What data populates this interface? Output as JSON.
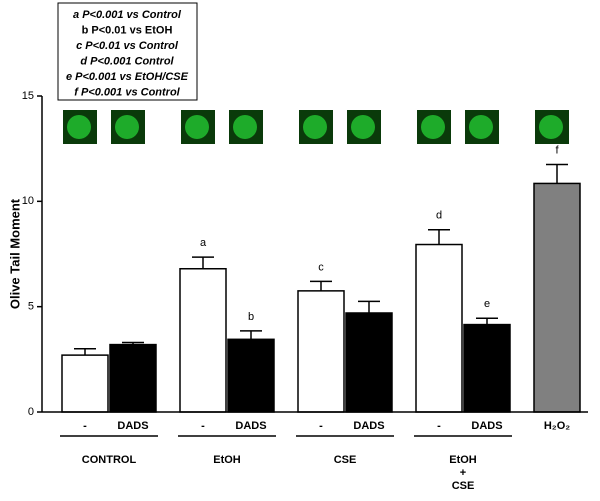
{
  "chart_data": {
    "type": "bar",
    "ylabel": "Olive Tail Moment",
    "categories": [
      "-",
      "DADS",
      "-",
      "DADS",
      "-",
      "DADS",
      "-",
      "DADS",
      "H₂O₂"
    ],
    "values": [
      2.7,
      3.2,
      6.8,
      3.45,
      5.75,
      4.7,
      7.95,
      4.15,
      10.85
    ],
    "errors": [
      0.3,
      0.1,
      0.55,
      0.4,
      0.45,
      0.55,
      0.7,
      0.3,
      0.9
    ],
    "colors": [
      "#ffffff",
      "#000000",
      "#ffffff",
      "#000000",
      "#ffffff",
      "#000000",
      "#ffffff",
      "#000000",
      "#808080"
    ],
    "bar_letters": [
      null,
      null,
      "a",
      "b",
      "c",
      null,
      "d",
      "e",
      "f"
    ],
    "groups": [
      {
        "label": [
          "CONTROL"
        ],
        "size": 2
      },
      {
        "label": [
          "EtOH"
        ],
        "size": 2
      },
      {
        "label": [
          "CSE"
        ],
        "size": 2
      },
      {
        "label": [
          "EtOH",
          "+",
          "CSE"
        ],
        "size": 2
      }
    ],
    "legend_lines": [
      "a P<0.001 vs Control",
      "b P<0.01 vs EtOH",
      "c P<0.01 vs Control",
      "d P<0.001 Control",
      "e P<0.001 vs EtOH/CSE",
      "f P<0.001 vs Control"
    ],
    "ylim": [
      0,
      15
    ],
    "yticks": [
      0,
      5,
      10,
      15
    ]
  }
}
